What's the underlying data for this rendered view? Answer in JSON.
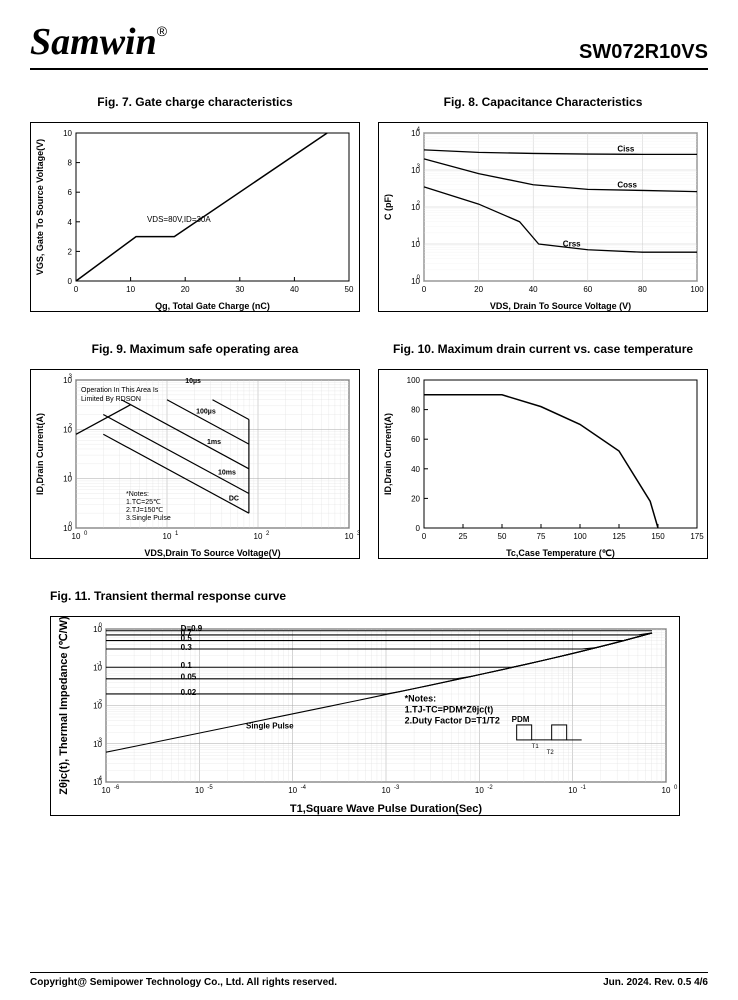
{
  "header": {
    "logo": "Samwin",
    "reg": "®",
    "partno": "SW072R10VS"
  },
  "fig7": {
    "title": "Fig. 7. Gate charge characteristics",
    "xlabel": "Qg, Total Gate Charge (nC)",
    "ylabel": "VGS, Gate To Source Voltage(V)",
    "xlim": [
      0,
      50
    ],
    "xtick_step": 10,
    "ylim": [
      0,
      10
    ],
    "ytick_step": 2,
    "annotation": "VDS=80V,ID=30A",
    "points": [
      [
        0,
        0
      ],
      [
        11,
        3
      ],
      [
        18,
        3
      ],
      [
        46,
        10
      ]
    ],
    "line_color": "#000000",
    "grid": false
  },
  "fig8": {
    "title": "Fig. 8. Capacitance Characteristics",
    "xlabel": "VDS, Drain To Source Voltage (V)",
    "ylabel": "C (pF)",
    "xlim": [
      0,
      100
    ],
    "xtick_step": 20,
    "ylim_log": [
      0,
      4
    ],
    "series": [
      {
        "name": "Ciss",
        "points": [
          [
            0,
            3500
          ],
          [
            20,
            3000
          ],
          [
            40,
            2800
          ],
          [
            60,
            2700
          ],
          [
            80,
            2650
          ],
          [
            100,
            2650
          ]
        ]
      },
      {
        "name": "Coss",
        "points": [
          [
            0,
            2000
          ],
          [
            20,
            800
          ],
          [
            40,
            400
          ],
          [
            60,
            300
          ],
          [
            80,
            280
          ],
          [
            100,
            260
          ]
        ]
      },
      {
        "name": "Crss",
        "points": [
          [
            0,
            350
          ],
          [
            20,
            120
          ],
          [
            35,
            40
          ],
          [
            42,
            10
          ],
          [
            60,
            7
          ],
          [
            80,
            6
          ],
          [
            100,
            6
          ]
        ]
      }
    ],
    "line_color": "#000000"
  },
  "fig9": {
    "title": "Fig. 9. Maximum safe operating area",
    "xlabel": "VDS,Drain To Source Voltage(V)",
    "ylabel": "ID,Drain Current(A)",
    "xlim_log": [
      0,
      3
    ],
    "ylim_log": [
      0,
      3
    ],
    "top_note": "Operation In This Area Is\nLimited By RDSON",
    "curves": [
      "10µs",
      "100µs",
      "1ms",
      "10ms",
      "DC"
    ],
    "notes": "*Notes:\n1.TC=25℃\n2.TJ=150℃\n3.Single Pulse"
  },
  "fig10": {
    "title": "Fig. 10. Maximum drain current vs. case temperature",
    "xlabel": "Tc,Case Temperature (℃)",
    "ylabel": "ID,Drain Current(A)",
    "xlim": [
      0,
      175
    ],
    "xtick_step": 25,
    "ylim": [
      0,
      100
    ],
    "ytick_step": 20,
    "points": [
      [
        0,
        90
      ],
      [
        25,
        90
      ],
      [
        50,
        90
      ],
      [
        75,
        82
      ],
      [
        100,
        70
      ],
      [
        125,
        52
      ],
      [
        145,
        18
      ],
      [
        150,
        0
      ]
    ],
    "line_color": "#000000"
  },
  "fig11": {
    "title": "Fig. 11. Transient thermal response curve",
    "xlabel": "T1,Square Wave Pulse Duration(Sec)",
    "ylabel": "Zθjc(t), Thermal Impedance (℃/W)",
    "xlim_log": [
      -6,
      0
    ],
    "ylim_log": [
      -4,
      0
    ],
    "duty_labels": [
      "D=0.9",
      "0.7",
      "0.5",
      "0.3",
      "0.1",
      "0.05",
      "0.02",
      "Single Pulse"
    ],
    "notes": "*Notes:\n1.TJ-TC=PDM*Zθjc(t)\n2.Duty Factor D=T1/T2",
    "pdm_label": "PDM"
  },
  "footer": {
    "left": "Copyright@ Semipower Technology Co., Ltd. All rights reserved.",
    "right": "Jun. 2024. Rev. 0.5    4/6"
  },
  "colors": {
    "line": "#000000",
    "grid": "#999999",
    "bg": "#ffffff"
  }
}
